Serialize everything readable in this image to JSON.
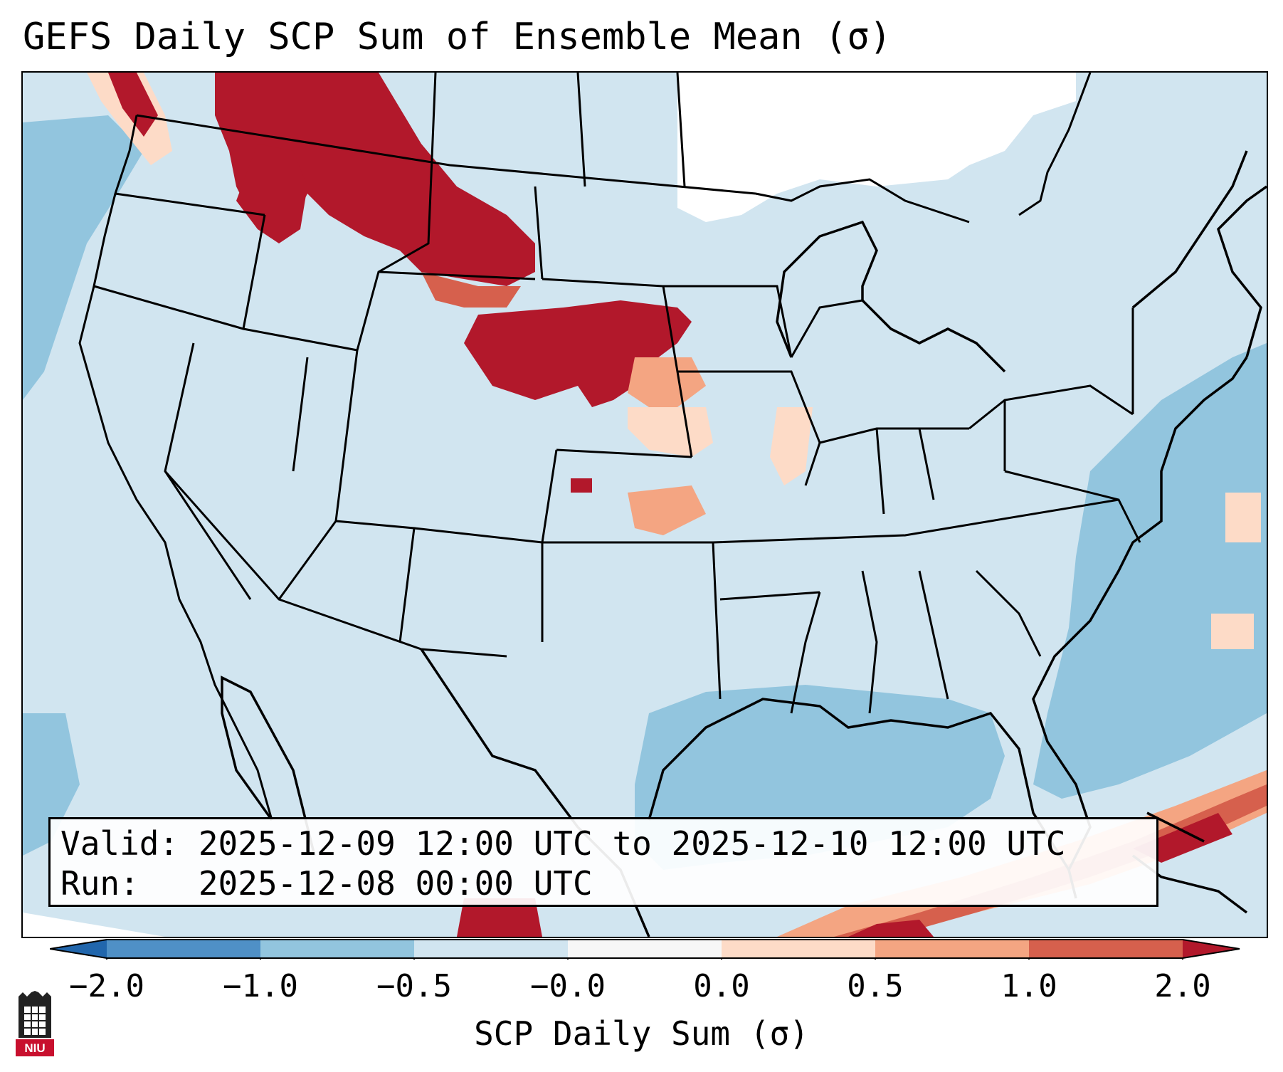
{
  "title": "GEFS Daily SCP Sum of Ensemble Mean (σ)",
  "valid_line": "Valid: 2025-12-09 12:00 UTC to 2025-12-10 12:00 UTC",
  "run_line": "Run:   2025-12-08 00:00 UTC",
  "colorbar": {
    "label": "SCP Daily Sum (σ)",
    "ticks": [
      "−2.0",
      "−1.0",
      "−0.5",
      "−0.0",
      "0.0",
      "0.5",
      "1.0",
      "2.0"
    ],
    "bins": [
      {
        "from": "−2.0",
        "to": "−1.0",
        "color": "#4f90c6"
      },
      {
        "from": "−1.0",
        "to": "−0.5",
        "color": "#92c5de"
      },
      {
        "from": "−0.5",
        "to": "−0.0",
        "color": "#d1e5f0"
      },
      {
        "from": "−0.0",
        "to": "0.0",
        "color": "#f7f7f7"
      },
      {
        "from": "0.0",
        "to": "0.5",
        "color": "#fddbc7"
      },
      {
        "from": "0.5",
        "to": "1.0",
        "color": "#f4a582"
      },
      {
        "from": "1.0",
        "to": "2.0",
        "color": "#d6604d"
      }
    ],
    "under_color": "#2166ac",
    "over_color": "#b2182b"
  },
  "logo_text": "NIU",
  "colors": {
    "background_field": "#d1e5f0",
    "ocean_anomaly": "#92c5de",
    "white_field": "#ffffff",
    "high_core": "#b2182b",
    "high": "#d6604d",
    "moderate": "#f4a582",
    "low": "#fddbc7"
  }
}
